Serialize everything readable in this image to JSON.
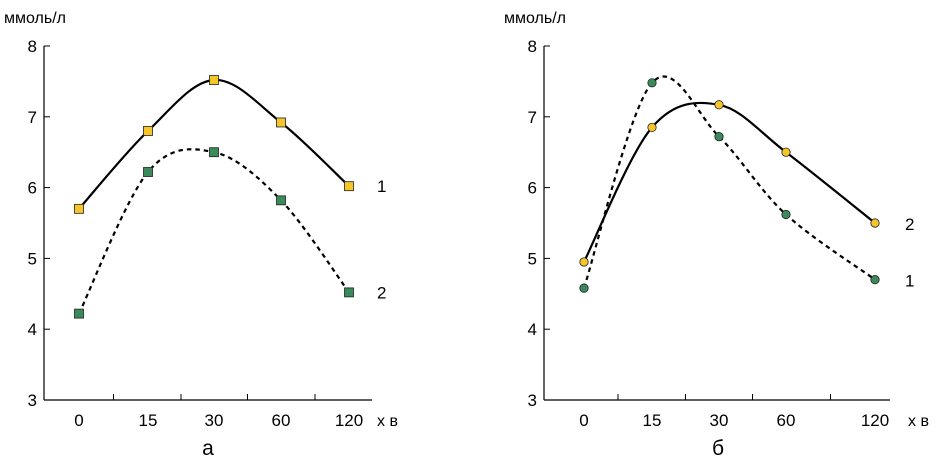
{
  "chart_data": [
    {
      "type": "line",
      "ylabel": "ммоль/л",
      "xlabel": "х в",
      "panel_label": "а",
      "categories": [
        "0",
        "15",
        "30",
        "60",
        "120"
      ],
      "ylim": [
        3,
        8
      ],
      "yticks": [
        3,
        4,
        5,
        6,
        7,
        8
      ],
      "grid": false,
      "series": [
        {
          "name": "1",
          "values": [
            5.7,
            6.8,
            7.52,
            6.92,
            6.02
          ],
          "line_style": "solid",
          "marker": "square",
          "marker_color": "#f5c52a"
        },
        {
          "name": "2",
          "values": [
            4.22,
            6.22,
            6.5,
            5.82,
            4.52
          ],
          "line_style": "dotted",
          "marker": "square",
          "marker_color": "#3a8a5a"
        }
      ]
    },
    {
      "type": "line",
      "ylabel": "ммоль/л",
      "xlabel": "х в",
      "panel_label": "б",
      "categories": [
        "0",
        "15",
        "30",
        "60",
        "120"
      ],
      "ylim": [
        3,
        8
      ],
      "yticks": [
        3,
        4,
        5,
        6,
        7,
        8
      ],
      "grid": false,
      "series": [
        {
          "name": "1",
          "values": [
            4.58,
            7.48,
            6.72,
            5.62,
            4.7
          ],
          "line_style": "dotted",
          "marker": "circle",
          "marker_color": "#3a8a5a"
        },
        {
          "name": "2",
          "values": [
            4.95,
            6.85,
            7.17,
            6.5,
            5.5
          ],
          "line_style": "solid",
          "marker": "circle",
          "marker_color": "#f5c52a"
        }
      ]
    }
  ]
}
